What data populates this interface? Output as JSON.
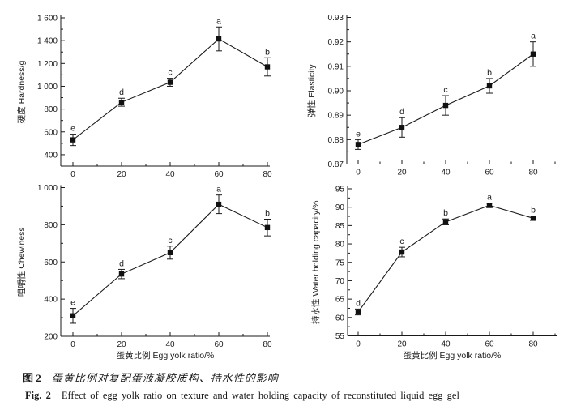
{
  "figure": {
    "caption_cn_label": "图 2",
    "caption_cn_text": "蛋黄比例对复配蛋液凝胶质构、持水性的影响",
    "caption_en_label": "Fig. 2",
    "caption_en_text": "Effect of egg yolk ratio on texture and water holding capacity of reconstituted liquid egg gel"
  },
  "colors": {
    "axis": "#1a1a1a",
    "line": "#1a1a1a",
    "marker": "#111111",
    "text": "#1a1a1a",
    "background": "#ffffff"
  },
  "chart_data": [
    {
      "id": "hardness",
      "type": "line",
      "position": "top-left",
      "ylabel": "硬度 Hardness/g",
      "xlabel": "",
      "x": [
        0,
        20,
        40,
        60,
        80
      ],
      "x_tick_labels": [
        "0",
        "20",
        "40",
        "60",
        "80"
      ],
      "values": [
        530,
        860,
        1035,
        1415,
        1170
      ],
      "errors": [
        50,
        35,
        35,
        105,
        80
      ],
      "point_labels": [
        "e",
        "d",
        "c",
        "a",
        "b"
      ],
      "ylim": [
        300,
        1600
      ],
      "y_ticks": [
        400,
        600,
        800,
        1000,
        1200,
        1400,
        1600
      ],
      "y_tick_labels": [
        "400",
        "600",
        "800",
        "1 000",
        "1 200",
        "1 400",
        "1 600"
      ],
      "marker": "filled-square",
      "grid": false,
      "legend": null
    },
    {
      "id": "elasticity",
      "type": "line",
      "position": "top-right",
      "ylabel": "弹性 Elasticity",
      "xlabel": "",
      "x": [
        0,
        20,
        40,
        60,
        80
      ],
      "x_tick_labels": [
        "0",
        "20",
        "40",
        "60",
        "80"
      ],
      "values": [
        0.878,
        0.885,
        0.894,
        0.902,
        0.915
      ],
      "errors": [
        0.002,
        0.004,
        0.004,
        0.003,
        0.005
      ],
      "point_labels": [
        "e",
        "d",
        "c",
        "b",
        "a"
      ],
      "ylim": [
        0.87,
        0.93
      ],
      "y_ticks": [
        0.87,
        0.88,
        0.89,
        0.9,
        0.91,
        0.92,
        0.93
      ],
      "y_tick_labels": [
        "0.87",
        "0.88",
        "0.89",
        "0.90",
        "0.91",
        "0.92",
        "0.93"
      ],
      "marker": "filled-square",
      "grid": false,
      "legend": null
    },
    {
      "id": "chewiness",
      "type": "line",
      "position": "bottom-left",
      "ylabel": "咀嚼性 Chewiness",
      "xlabel": "蛋黄比例 Egg yolk ratio/%",
      "x": [
        0,
        20,
        40,
        60,
        80
      ],
      "x_tick_labels": [
        "0",
        "20",
        "40",
        "60",
        "80"
      ],
      "values": [
        310,
        535,
        650,
        910,
        785
      ],
      "errors": [
        40,
        25,
        35,
        50,
        45
      ],
      "point_labels": [
        "e",
        "d",
        "c",
        "a",
        "b"
      ],
      "ylim": [
        200,
        1000
      ],
      "y_ticks": [
        200,
        400,
        600,
        800,
        1000
      ],
      "y_tick_labels": [
        "200",
        "400",
        "600",
        "800",
        "1 000"
      ],
      "marker": "filled-square",
      "grid": false,
      "legend": null
    },
    {
      "id": "water-holding-capacity",
      "type": "line",
      "position": "bottom-right",
      "ylabel": "持水性 Water holding capacity/%",
      "xlabel": "蛋黄比例 Egg yolk ratio/%",
      "x": [
        0,
        20,
        40,
        60,
        80
      ],
      "x_tick_labels": [
        "0",
        "20",
        "40",
        "60",
        "80"
      ],
      "values": [
        61.5,
        77.8,
        86.0,
        90.5,
        87.0
      ],
      "errors": [
        0.8,
        1.3,
        0.8,
        0.6,
        0.6
      ],
      "point_labels": [
        "d",
        "c",
        "b",
        "a",
        "b"
      ],
      "ylim": [
        55,
        95
      ],
      "y_ticks": [
        55,
        60,
        65,
        70,
        75,
        80,
        85,
        90,
        95
      ],
      "y_tick_labels": [
        "55",
        "60",
        "65",
        "70",
        "75",
        "80",
        "85",
        "90",
        "95"
      ],
      "marker": "filled-square",
      "grid": false,
      "legend": null
    }
  ]
}
